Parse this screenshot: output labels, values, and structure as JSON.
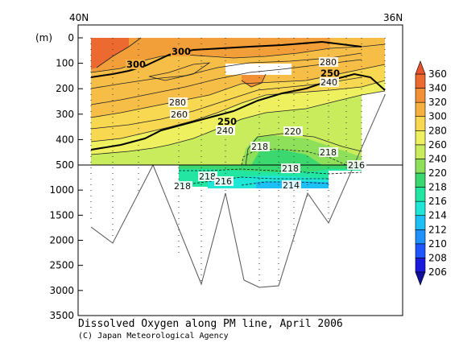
{
  "chart_data": {
    "type": "heatmap",
    "title": "Dissolved Oxygen along PM line, April 2006",
    "credit": "(C) Japan Meteorological Agency",
    "ylabel": "(m)",
    "x_labels": [
      "40N",
      "36N"
    ],
    "y_ticks_upper": [
      0,
      100,
      200,
      300,
      400
    ],
    "y_ticks_lower": [
      500,
      1000,
      1500,
      2000,
      2500,
      3000,
      3500
    ],
    "ylim": [
      0,
      3500
    ],
    "upper_panel_range": [
      0,
      500
    ],
    "colorbar": {
      "levels": [
        206,
        208,
        210,
        212,
        214,
        216,
        218,
        220,
        240,
        260,
        280,
        300,
        320,
        340,
        360
      ],
      "colors": [
        "#1a1adb",
        "#1f55ff",
        "#1e90ff",
        "#1cc0f5",
        "#20e6d8",
        "#22e6a2",
        "#3ad86e",
        "#8ee05a",
        "#c8ec5c",
        "#eef060",
        "#f8d850",
        "#f5b040",
        "#f29035",
        "#ec6a30"
      ]
    },
    "contour_labels": [
      "300",
      "300",
      "280",
      "280",
      "250",
      "250",
      "240",
      "240",
      "260",
      "220",
      "218",
      "218",
      "218",
      "218",
      "218",
      "216",
      "216",
      "214"
    ]
  }
}
